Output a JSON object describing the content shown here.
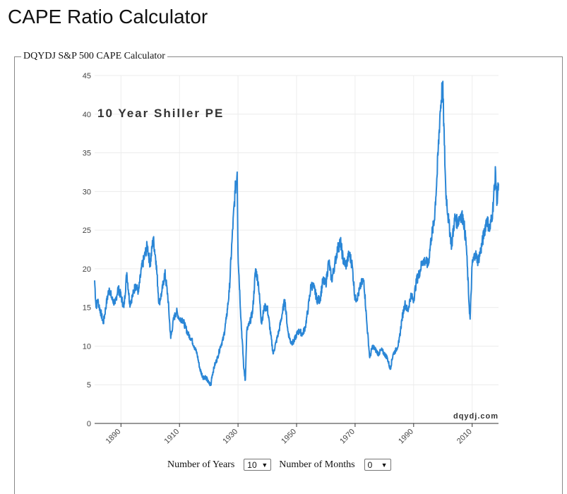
{
  "page": {
    "title": "CAPE Ratio Calculator"
  },
  "fieldset": {
    "legend": "DQYDJ S&P 500 CAPE Calculator"
  },
  "controls": {
    "years_label": "Number of Years",
    "years_value": "10",
    "months_label": "Number of Months",
    "months_value": "0",
    "caret": "▼"
  },
  "colors": {
    "line": "#2a86d6",
    "grid": "#ececec",
    "axis": "#333333",
    "watermark": "#333333"
  },
  "chart_data": {
    "type": "line",
    "title": "10 Year Shiller PE",
    "watermark": "dqydj.com",
    "xlabel": "",
    "ylabel": "",
    "xlim": [
      1881,
      2019
    ],
    "ylim": [
      0,
      45
    ],
    "yticks": [
      0,
      5,
      10,
      15,
      20,
      25,
      30,
      35,
      40,
      45
    ],
    "xticks": [
      1890,
      1910,
      1930,
      1950,
      1970,
      1990,
      2010
    ],
    "series": [
      {
        "name": "10 Year Shiller PE",
        "x": [
          1881,
          1881.5,
          1882,
          1883,
          1884,
          1885,
          1886,
          1887,
          1888,
          1889,
          1890,
          1891,
          1892,
          1893,
          1894,
          1895,
          1896,
          1897,
          1898,
          1899,
          1900,
          1901,
          1902,
          1903,
          1904,
          1905,
          1906,
          1907,
          1908,
          1909,
          1910,
          1911,
          1912,
          1913,
          1914,
          1915,
          1916,
          1917,
          1918,
          1919,
          1920,
          1920.8,
          1921,
          1922,
          1923,
          1924,
          1925,
          1926,
          1927,
          1928,
          1929,
          1929.7,
          1930,
          1931,
          1932,
          1932.5,
          1933,
          1934,
          1935,
          1936,
          1937,
          1938,
          1939,
          1940,
          1941,
          1942,
          1943,
          1944,
          1945,
          1946,
          1947,
          1948,
          1949,
          1950,
          1951,
          1952,
          1953,
          1954,
          1955,
          1956,
          1957,
          1958,
          1959,
          1960,
          1961,
          1962,
          1963,
          1964,
          1965,
          1966,
          1967,
          1968,
          1969,
          1970,
          1971,
          1972,
          1973,
          1974,
          1975,
          1976,
          1977,
          1978,
          1979,
          1980,
          1981,
          1982,
          1983,
          1984,
          1985,
          1986,
          1987,
          1988,
          1989,
          1990,
          1991,
          1992,
          1993,
          1994,
          1995,
          1996,
          1997,
          1998,
          1999,
          1999.9,
          2000.5,
          2001,
          2002,
          2003,
          2004,
          2005,
          2006,
          2007,
          2008,
          2009,
          2009.3,
          2010,
          2011,
          2012,
          2013,
          2014,
          2015,
          2016,
          2017,
          2018,
          2018.5,
          2019
        ],
        "values": [
          18.5,
          15.0,
          16.0,
          14.5,
          13.0,
          15.5,
          17.5,
          16.0,
          15.5,
          17.5,
          16.5,
          15.0,
          19.5,
          15.5,
          16.5,
          18.0,
          17.0,
          20.0,
          21.5,
          23.0,
          20.5,
          24.0,
          21.0,
          15.5,
          17.0,
          19.5,
          16.5,
          11.0,
          13.5,
          14.5,
          13.5,
          13.5,
          12.5,
          11.5,
          11.0,
          10.0,
          9.0,
          7.0,
          6.0,
          6.0,
          5.2,
          5.0,
          6.0,
          7.5,
          8.5,
          10.0,
          11.0,
          13.5,
          17.0,
          24.0,
          30.0,
          32.5,
          22.0,
          13.5,
          7.0,
          5.6,
          12.0,
          13.0,
          14.5,
          20.0,
          18.0,
          13.0,
          15.0,
          15.0,
          12.0,
          9.0,
          10.5,
          12.0,
          14.0,
          16.0,
          12.0,
          10.5,
          10.5,
          11.5,
          12.0,
          11.5,
          12.5,
          15.0,
          18.0,
          17.5,
          16.0,
          16.0,
          18.5,
          18.0,
          21.0,
          18.5,
          20.5,
          22.5,
          23.5,
          21.0,
          20.5,
          22.0,
          20.5,
          16.0,
          16.5,
          18.0,
          18.5,
          13.0,
          8.5,
          10.0,
          9.5,
          9.0,
          9.5,
          9.0,
          8.5,
          7.0,
          9.0,
          9.5,
          10.5,
          13.5,
          15.5,
          14.5,
          16.5,
          16.0,
          18.5,
          19.5,
          21.0,
          21.0,
          20.5,
          24.0,
          26.0,
          32.0,
          40.0,
          44.0,
          36.0,
          30.0,
          26.0,
          23.0,
          26.5,
          26.0,
          27.0,
          26.5,
          23.0,
          15.0,
          13.5,
          20.5,
          22.0,
          21.0,
          22.5,
          24.5,
          26.5,
          25.0,
          27.5,
          32.5,
          28.5,
          31.0
        ]
      }
    ]
  }
}
